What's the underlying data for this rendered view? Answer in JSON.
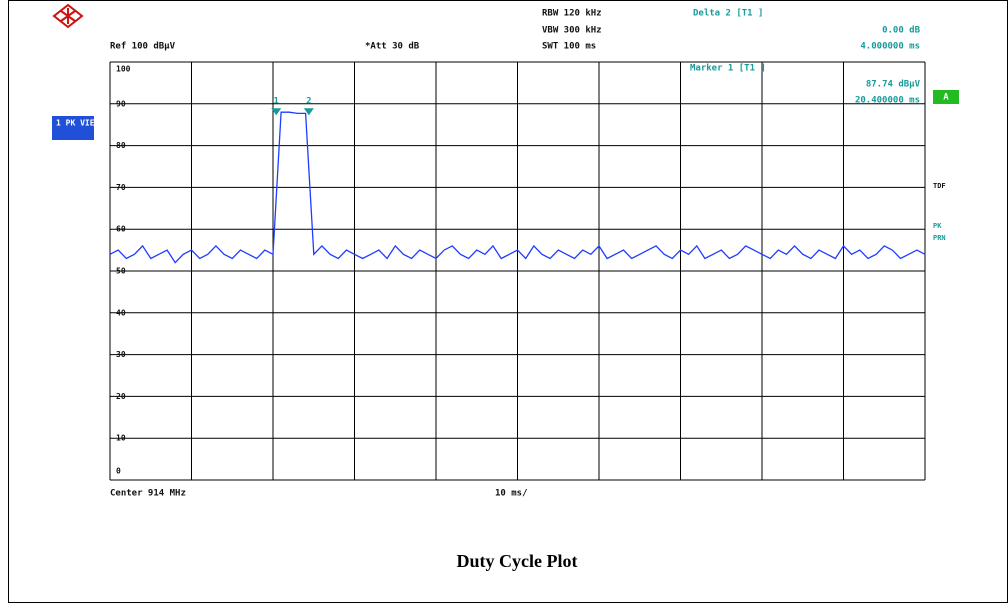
{
  "header": {
    "rbw": "RBW 120 kHz",
    "vbw": "VBW 300 kHz",
    "swt": "SWT 100 ms",
    "delta_title": "Delta 2 [T1 ]",
    "delta_level": "0.00 dB",
    "delta_time": "4.000000 ms",
    "ref": "Ref 100 dBµV",
    "att": "*Att 30 dB",
    "marker_title": "Marker 1 [T1 ]",
    "marker_level": "87.74 dBµV",
    "marker_time": "20.400000 ms",
    "trace_mode": "1 PK VIEW",
    "screen": "A",
    "side_labels": [
      "TDF",
      "PK",
      "PRN"
    ],
    "center": "Center 914 MHz",
    "span": "10 ms/"
  },
  "caption": "Duty Cycle Plot",
  "chart_data": {
    "type": "line",
    "xlim": [
      0,
      100
    ],
    "ylim": [
      0,
      100
    ],
    "yticks": [
      0,
      10,
      20,
      30,
      40,
      50,
      60,
      70,
      80,
      90,
      100
    ],
    "grid": true,
    "x": [
      0,
      1,
      2,
      3,
      4,
      5,
      6,
      7,
      8,
      9,
      10,
      11,
      12,
      13,
      14,
      15,
      16,
      17,
      18,
      19,
      20,
      21,
      22,
      23,
      24,
      25,
      26,
      27,
      28,
      29,
      30,
      31,
      32,
      33,
      34,
      35,
      36,
      37,
      38,
      39,
      40,
      41,
      42,
      43,
      44,
      45,
      46,
      47,
      48,
      49,
      50,
      51,
      52,
      53,
      54,
      55,
      56,
      57,
      58,
      59,
      60,
      61,
      62,
      63,
      64,
      65,
      66,
      67,
      68,
      69,
      70,
      71,
      72,
      73,
      74,
      75,
      76,
      77,
      78,
      79,
      80,
      81,
      82,
      83,
      84,
      85,
      86,
      87,
      88,
      89,
      90,
      91,
      92,
      93,
      94,
      95,
      96,
      97,
      98,
      99,
      100
    ],
    "series": [
      {
        "color": "#1f3cff",
        "values": [
          54,
          55,
          53,
          54,
          56,
          53,
          54,
          55,
          52,
          54,
          55,
          53,
          54,
          56,
          54,
          53,
          55,
          54,
          53,
          55,
          54,
          88,
          88,
          87.7,
          87.7,
          54,
          56,
          54,
          53,
          55,
          54,
          53,
          54,
          55,
          53,
          56,
          54,
          53,
          55,
          54,
          53,
          55,
          56,
          54,
          53,
          55,
          54,
          56,
          53,
          54,
          55,
          53,
          56,
          54,
          53,
          55,
          54,
          53,
          55,
          54,
          56,
          53,
          54,
          55,
          53,
          54,
          55,
          56,
          54,
          53,
          55,
          54,
          56,
          53,
          54,
          55,
          53,
          54,
          56,
          55,
          54,
          53,
          55,
          54,
          56,
          54,
          53,
          55,
          54,
          53,
          56,
          54,
          55,
          53,
          54,
          56,
          55,
          53,
          54,
          55,
          54
        ]
      }
    ],
    "markers": [
      {
        "label": "1",
        "x": 20.4,
        "y": 87.74
      },
      {
        "label": "2",
        "dx": 4,
        "dy": 0
      }
    ]
  }
}
